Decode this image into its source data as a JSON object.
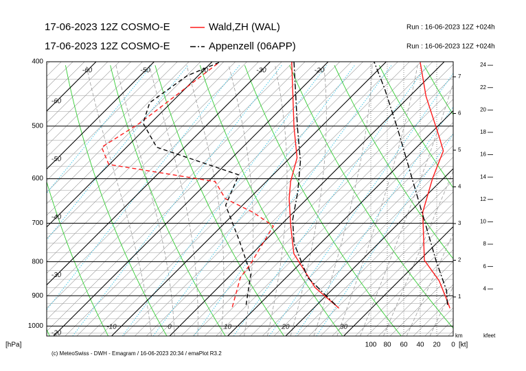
{
  "chart_data": {
    "type": "emagram",
    "ylabel": "[hPa]",
    "ylim": [
      1035,
      400
    ],
    "yticks": [
      400,
      500,
      600,
      700,
      800,
      900,
      1000
    ],
    "ylog": true,
    "xticks": [
      -60,
      -50,
      -40,
      -30,
      -20,
      -10,
      0,
      10,
      20,
      30
    ],
    "wind_label": "[kt]",
    "wind_ticks": [
      100,
      80,
      60,
      40,
      20,
      0
    ],
    "km_label": "km",
    "km_ticks": [
      1,
      2,
      3,
      4,
      5,
      6,
      7
    ],
    "kfeet_label": "kfeet",
    "kfeet_ticks": [
      4,
      6,
      8,
      10,
      12,
      14,
      16,
      18,
      20,
      22,
      24
    ],
    "credit": "(c) MeteoSwiss - DWH - Emagram / 16-06-2023 20:34 / emaPlot R3.2",
    "series": [
      {
        "name": "Wald,ZH (WAL)",
        "model": "17-06-2023 12Z COSMO-E",
        "run": "Run : 16-06-2023 12Z +024h",
        "color": "#ff1a1a",
        "temperature_style": "solid",
        "dewpoint_style": "dashed",
        "pressure": [
          940,
          875,
          778,
          707,
          643,
          606,
          558,
          501,
          400
        ],
        "temperature": [
          24.4,
          16.7,
          7.2,
          1.9,
          -3.1,
          -5.8,
          -8.8,
          -14.7,
          -26.3
        ],
        "dewpoint_pressure": [
          936,
          845,
          806,
          707,
          674,
          643,
          606,
          571,
          538,
          495,
          440,
          401
        ],
        "dewpoint": [
          5.8,
          2.1,
          1.5,
          -1.1,
          -7.0,
          -14.1,
          -18.8,
          -40.1,
          -44.3,
          -41.9,
          -40.1,
          -38.7
        ],
        "wind_pressure": [
          940,
          918,
          855,
          796,
          674,
          599,
          545,
          519,
          451,
          401
        ],
        "wind_speed": [
          4,
          7,
          17,
          35,
          37,
          25,
          12,
          17,
          33,
          40
        ]
      },
      {
        "name": "Appenzell (06APP)",
        "model": "17-06-2023 12Z COSMO-E",
        "run": "Run : 16-06-2023 12Z +024h",
        "color": "#000000",
        "temperature_style": "dashdot",
        "dewpoint_style": "dashed",
        "pressure": [
          929,
          845,
          750,
          691,
          628,
          565,
          501,
          400
        ],
        "temperature": [
          23.2,
          13.7,
          5.4,
          1.1,
          -2.8,
          -7.6,
          -14.1,
          -25.9
        ],
        "dewpoint_pressure": [
          929,
          835,
          742,
          658,
          592,
          538,
          495,
          461,
          420,
          401
        ],
        "dewpoint": [
          7.8,
          3.3,
          -4.6,
          -12.9,
          -15.9,
          -34.8,
          -41.3,
          -43.7,
          -41.9,
          -38.7
        ],
        "wind_pressure": [
          929,
          885,
          796,
          707,
          599,
          507,
          440,
          400
        ],
        "wind_speed": [
          7,
          8,
          21,
          33,
          50,
          67,
          83,
          96
        ]
      }
    ]
  }
}
